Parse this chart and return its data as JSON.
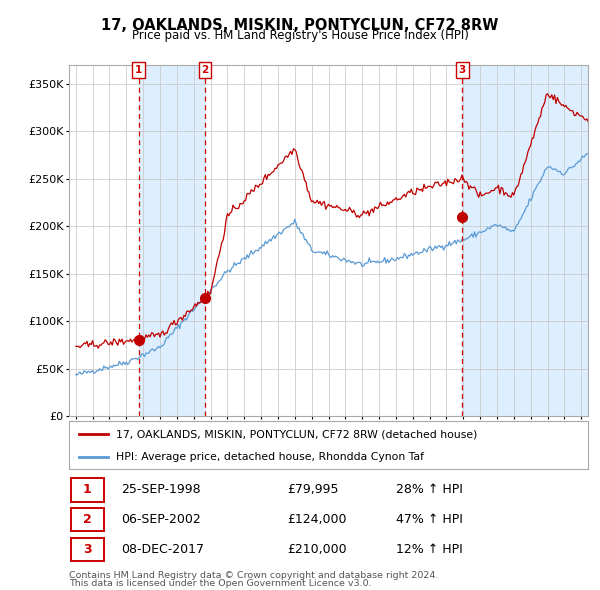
{
  "title": "17, OAKLANDS, MISKIN, PONTYCLUN, CF72 8RW",
  "subtitle": "Price paid vs. HM Land Registry's House Price Index (HPI)",
  "legend_line1": "17, OAKLANDS, MISKIN, PONTYCLUN, CF72 8RW (detached house)",
  "legend_line2": "HPI: Average price, detached house, Rhondda Cynon Taf",
  "footer_line1": "Contains HM Land Registry data © Crown copyright and database right 2024.",
  "footer_line2": "This data is licensed under the Open Government Licence v3.0.",
  "transactions": [
    {
      "num": "1",
      "date": "25-SEP-1998",
      "price": "£79,995",
      "hpi": "28% ↑ HPI",
      "year": 1998.73
    },
    {
      "num": "2",
      "date": "06-SEP-2002",
      "price": "£124,000",
      "hpi": "47% ↑ HPI",
      "year": 2002.68
    },
    {
      "num": "3",
      "date": "08-DEC-2017",
      "price": "£210,000",
      "hpi": "12% ↑ HPI",
      "year": 2017.94
    }
  ],
  "transaction_values": [
    79995,
    124000,
    210000
  ],
  "hpi_color": "#5b9bd5",
  "price_color": "#c00000",
  "vline_color": "#cc0000",
  "shade_color": "#ddeeff",
  "background_chart": "#ffffff",
  "background_fig": "#ffffff",
  "ylim": [
    0,
    370000
  ],
  "xlim_start": 1994.6,
  "xlim_end": 2025.4
}
